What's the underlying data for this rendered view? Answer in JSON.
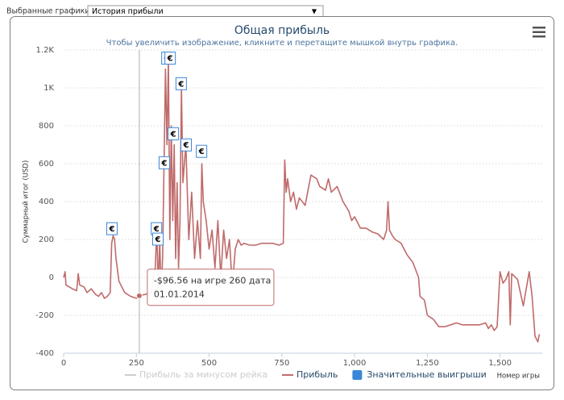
{
  "selector": {
    "label": "Выбранные графики:",
    "value": "История прибыли"
  },
  "chart_data": {
    "type": "line",
    "title": "Общая прибыль",
    "subtitle": "Чтобы увеличить изображение, кликните и перетащите мышкой внутрь графика.",
    "y_label": "Суммарный итог (USD)",
    "x_label": "Номер игры",
    "xlim": [
      0,
      1645
    ],
    "xticks": [
      0,
      250,
      500,
      750,
      {
        "value": 1000,
        "label": "1,000"
      },
      {
        "value": 1250,
        "label": "1,250"
      },
      {
        "value": 1500,
        "label": "1,500"
      }
    ],
    "ylim": [
      -400,
      1200
    ],
    "yticks": [
      -400,
      -200,
      0,
      200,
      400,
      600,
      800,
      {
        "value": 1000,
        "label": "1K"
      },
      {
        "value": 1200,
        "label": "1.2K"
      }
    ],
    "grid": true,
    "series": [
      {
        "name": "Прибыль за минусом рейка",
        "color": "#cccccc",
        "visible": false
      },
      {
        "name": "Прибыль",
        "color": "#c06a6a",
        "visible": true,
        "x": [
          0,
          5,
          8,
          30,
          45,
          50,
          55,
          70,
          80,
          95,
          110,
          120,
          130,
          140,
          150,
          160,
          165,
          170,
          175,
          180,
          190,
          200,
          210,
          230,
          250,
          260,
          280,
          300,
          315,
          320,
          325,
          330,
          335,
          340,
          345,
          350,
          355,
          360,
          365,
          370,
          375,
          380,
          385,
          390,
          395,
          400,
          405,
          410,
          420,
          430,
          440,
          450,
          460,
          470,
          475,
          480,
          490,
          500,
          510,
          520,
          530,
          540,
          550,
          560,
          570,
          580,
          590,
          600,
          610,
          620,
          640,
          660,
          680,
          700,
          720,
          740,
          755,
          760,
          765,
          770,
          780,
          790,
          800,
          810,
          830,
          850,
          870,
          880,
          900,
          910,
          920,
          940,
          960,
          980,
          990,
          1000,
          1020,
          1040,
          1060,
          1080,
          1100,
          1110,
          1115,
          1120,
          1130,
          1140,
          1160,
          1180,
          1200,
          1220,
          1225,
          1240,
          1250,
          1270,
          1290,
          1310,
          1330,
          1350,
          1370,
          1400,
          1430,
          1450,
          1460,
          1470,
          1480,
          1490,
          1500,
          1510,
          1520,
          1530,
          1535,
          1540,
          1560,
          1580,
          1600,
          1610,
          1620,
          1630,
          1635
        ],
        "values": [
          0,
          30,
          -40,
          -60,
          -70,
          20,
          -40,
          -50,
          -80,
          -60,
          -90,
          -100,
          -80,
          -110,
          -100,
          -80,
          180,
          220,
          200,
          100,
          -20,
          -50,
          -80,
          -100,
          -110,
          -96.56,
          -90,
          -80,
          50,
          250,
          -60,
          200,
          -80,
          100,
          600,
          1100,
          700,
          1150,
          200,
          800,
          300,
          700,
          100,
          500,
          50,
          300,
          1000,
          500,
          700,
          200,
          450,
          100,
          300,
          100,
          600,
          400,
          300,
          150,
          250,
          50,
          300,
          0,
          250,
          100,
          200,
          -50,
          150,
          200,
          170,
          180,
          170,
          170,
          180,
          180,
          180,
          170,
          180,
          620,
          450,
          520,
          400,
          450,
          360,
          420,
          380,
          540,
          520,
          480,
          460,
          520,
          450,
          480,
          400,
          350,
          300,
          320,
          260,
          260,
          240,
          230,
          200,
          250,
          400,
          250,
          220,
          200,
          180,
          120,
          80,
          0,
          -100,
          -120,
          -200,
          -220,
          -260,
          -260,
          -250,
          -240,
          -250,
          -250,
          -250,
          -240,
          -270,
          -250,
          -280,
          -260,
          30,
          -30,
          -10,
          30,
          -250,
          20,
          -10,
          -150,
          30,
          -100,
          -310,
          -340,
          -300
        ]
      },
      {
        "name": "Значительные выигрыши",
        "color": "#3a87d8",
        "visible": true,
        "symbol": "€",
        "x": [
          166,
          319,
          324,
          346,
          355,
          366,
          377,
          404,
          421,
          474
        ],
        "values": [
          221,
          221,
          166,
          569,
          1121,
          1121,
          722,
          986,
          663,
          629
        ]
      }
    ],
    "tooltip": {
      "x": 260,
      "y": -96.56,
      "lines": [
        "-$96.56 на игре 260 дата",
        "01.01.2014"
      ]
    }
  }
}
